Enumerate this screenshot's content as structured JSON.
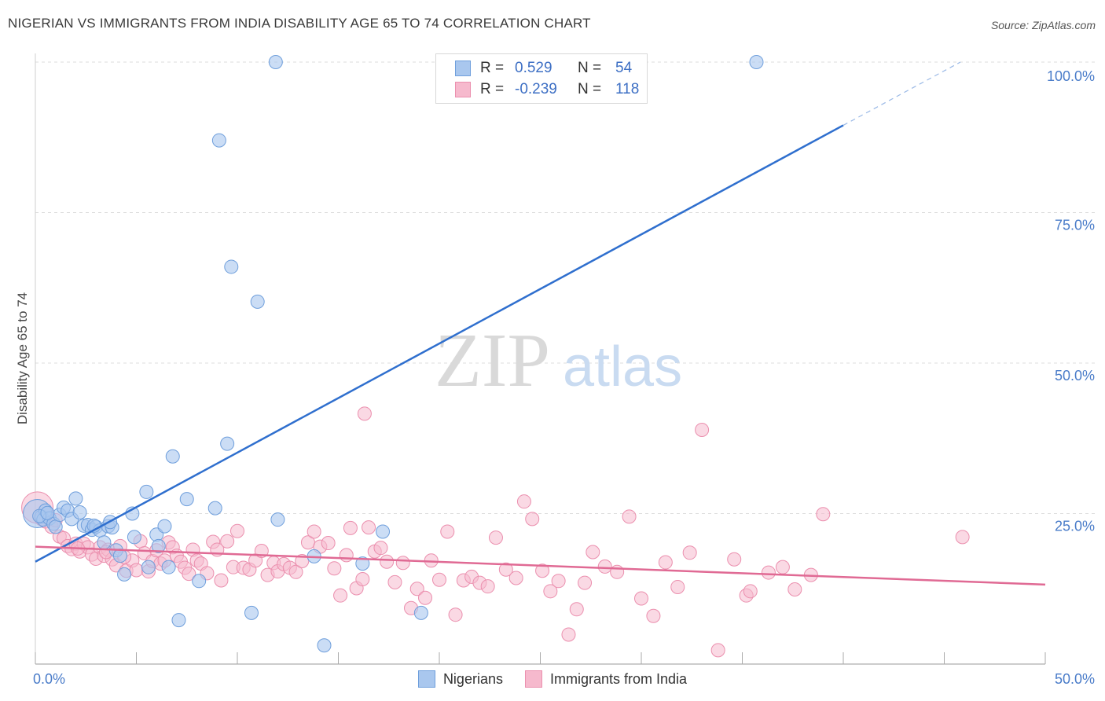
{
  "header": {
    "title": "NIGERIAN VS IMMIGRANTS FROM INDIA DISABILITY AGE 65 TO 74 CORRELATION CHART",
    "source": "Source: ZipAtlas.com"
  },
  "watermark": {
    "zip": "ZIP",
    "atlas": "atlas"
  },
  "legend": {
    "rows": [
      {
        "r_label": "R =",
        "r_value": "0.529",
        "n_label": "N =",
        "n_value": "54"
      },
      {
        "r_label": "R =",
        "r_value": "-0.239",
        "n_label": "N =",
        "n_value": "118"
      }
    ]
  },
  "bottom_legend": {
    "series1": "Nigerians",
    "series2": "Immigrants from India"
  },
  "colors": {
    "series1_fill": "#a9c7ee",
    "series1_stroke": "#6f9fdc",
    "series1_line": "#2f6fce",
    "series2_fill": "#f6b9cd",
    "series2_stroke": "#eb8fae",
    "series2_line": "#e06a94",
    "tick_text": "#4a7cc9",
    "grid": "#dddddd"
  },
  "chart_data": {
    "type": "scatter",
    "title": "NIGERIAN VS IMMIGRANTS FROM INDIA DISABILITY AGE 65 TO 74 CORRELATION CHART",
    "xlabel": "",
    "ylabel": "Disability Age 65 to 74",
    "xlim": [
      0,
      50
    ],
    "ylim": [
      0,
      100
    ],
    "x_tick_labels": [
      "0.0%",
      "50.0%"
    ],
    "y_ticks": [
      25,
      50,
      75,
      100
    ],
    "y_tick_labels": [
      "25.0%",
      "50.0%",
      "75.0%",
      "100.0%"
    ],
    "series": [
      {
        "name": "Nigerians",
        "r": 0.529,
        "n": 54,
        "trend": {
          "x0": 0,
          "y0": 17.0,
          "x1": 40,
          "y1": 89.5,
          "dashed_to_x": 45.8,
          "dashed_to_y": 100
        },
        "points": [
          [
            0.1,
            25.0
          ],
          [
            0.3,
            24.5
          ],
          [
            0.4,
            24.0
          ],
          [
            0.5,
            25.5
          ],
          [
            0.7,
            24.2
          ],
          [
            0.9,
            23.3
          ],
          [
            1.0,
            22.8
          ],
          [
            1.2,
            24.8
          ],
          [
            1.4,
            26.0
          ],
          [
            1.6,
            25.5
          ],
          [
            1.8,
            24.1
          ],
          [
            2.0,
            27.5
          ],
          [
            2.2,
            25.2
          ],
          [
            2.4,
            23.0
          ],
          [
            2.6,
            23.1
          ],
          [
            2.8,
            22.3
          ],
          [
            3.0,
            22.8
          ],
          [
            3.2,
            22.2
          ],
          [
            3.4,
            20.2
          ],
          [
            3.6,
            22.9
          ],
          [
            3.8,
            22.7
          ],
          [
            4.0,
            18.9
          ],
          [
            4.2,
            18.0
          ],
          [
            4.4,
            14.9
          ],
          [
            4.8,
            25.0
          ],
          [
            4.9,
            21.1
          ],
          [
            5.5,
            28.6
          ],
          [
            5.6,
            16.1
          ],
          [
            6.0,
            21.5
          ],
          [
            6.1,
            19.6
          ],
          [
            6.4,
            22.9
          ],
          [
            6.6,
            16.1
          ],
          [
            6.8,
            34.5
          ],
          [
            7.1,
            7.3
          ],
          [
            7.5,
            27.4
          ],
          [
            8.1,
            13.8
          ],
          [
            8.9,
            25.9
          ],
          [
            9.1,
            87.0
          ],
          [
            9.5,
            36.6
          ],
          [
            9.7,
            66.0
          ],
          [
            10.7,
            8.5
          ],
          [
            11.0,
            60.2
          ],
          [
            11.9,
            100.0
          ],
          [
            12.0,
            24.0
          ],
          [
            13.8,
            17.9
          ],
          [
            14.3,
            3.1
          ],
          [
            16.2,
            16.7
          ],
          [
            17.2,
            22.0
          ],
          [
            19.1,
            8.5
          ],
          [
            35.7,
            100.0
          ],
          [
            0.2,
            24.6
          ],
          [
            0.6,
            25.1
          ],
          [
            2.9,
            23.0
          ],
          [
            3.7,
            23.6
          ]
        ]
      },
      {
        "name": "Immigrants from India",
        "r": -0.239,
        "n": 118,
        "trend": {
          "x0": 0,
          "y0": 19.5,
          "x1": 50,
          "y1": 13.2
        },
        "points": [
          [
            0.1,
            26.0
          ],
          [
            0.3,
            24.1
          ],
          [
            0.5,
            23.7
          ],
          [
            0.8,
            22.8
          ],
          [
            1.0,
            23.9
          ],
          [
            1.2,
            21.2
          ],
          [
            1.4,
            20.9
          ],
          [
            1.6,
            19.6
          ],
          [
            1.8,
            19.1
          ],
          [
            2.0,
            20.0
          ],
          [
            2.2,
            18.7
          ],
          [
            2.4,
            20.0
          ],
          [
            2.6,
            19.4
          ],
          [
            2.8,
            18.2
          ],
          [
            3.0,
            17.5
          ],
          [
            3.2,
            19.4
          ],
          [
            3.4,
            18.0
          ],
          [
            3.6,
            19.0
          ],
          [
            3.8,
            17.4
          ],
          [
            4.0,
            16.4
          ],
          [
            4.2,
            19.6
          ],
          [
            4.5,
            15.5
          ],
          [
            4.8,
            17.2
          ],
          [
            5.0,
            15.6
          ],
          [
            5.2,
            20.4
          ],
          [
            5.4,
            18.4
          ],
          [
            5.6,
            15.4
          ],
          [
            5.8,
            17.1
          ],
          [
            6.0,
            18.9
          ],
          [
            6.2,
            16.7
          ],
          [
            6.4,
            17.2
          ],
          [
            6.6,
            20.2
          ],
          [
            6.8,
            19.4
          ],
          [
            7.0,
            18.0
          ],
          [
            7.2,
            17.0
          ],
          [
            7.4,
            16.0
          ],
          [
            7.6,
            15.0
          ],
          [
            7.8,
            19.0
          ],
          [
            8.0,
            17.2
          ],
          [
            8.2,
            16.7
          ],
          [
            8.5,
            15.1
          ],
          [
            8.8,
            20.3
          ],
          [
            9.0,
            19.0
          ],
          [
            9.2,
            13.9
          ],
          [
            9.5,
            20.4
          ],
          [
            9.8,
            16.1
          ],
          [
            10.0,
            22.1
          ],
          [
            10.3,
            16.0
          ],
          [
            10.6,
            15.7
          ],
          [
            10.9,
            17.2
          ],
          [
            11.2,
            18.8
          ],
          [
            11.5,
            14.8
          ],
          [
            11.8,
            16.8
          ],
          [
            12.0,
            15.4
          ],
          [
            12.3,
            16.6
          ],
          [
            12.6,
            16.0
          ],
          [
            12.9,
            15.3
          ],
          [
            13.2,
            17.1
          ],
          [
            13.5,
            20.2
          ],
          [
            13.8,
            22.0
          ],
          [
            14.1,
            19.5
          ],
          [
            14.5,
            20.1
          ],
          [
            14.8,
            15.9
          ],
          [
            15.1,
            11.4
          ],
          [
            15.4,
            18.1
          ],
          [
            15.6,
            22.6
          ],
          [
            15.9,
            12.6
          ],
          [
            16.2,
            14.1
          ],
          [
            16.5,
            22.7
          ],
          [
            16.8,
            18.7
          ],
          [
            17.1,
            19.3
          ],
          [
            17.4,
            17.0
          ],
          [
            17.8,
            13.6
          ],
          [
            18.2,
            16.8
          ],
          [
            18.6,
            9.3
          ],
          [
            18.9,
            12.5
          ],
          [
            19.3,
            11.0
          ],
          [
            19.6,
            17.2
          ],
          [
            20.0,
            14.0
          ],
          [
            20.4,
            22.0
          ],
          [
            20.8,
            8.2
          ],
          [
            21.2,
            13.9
          ],
          [
            21.6,
            14.5
          ],
          [
            22.0,
            13.5
          ],
          [
            22.4,
            12.9
          ],
          [
            22.8,
            21.0
          ],
          [
            23.3,
            15.7
          ],
          [
            23.8,
            14.3
          ],
          [
            24.2,
            27.0
          ],
          [
            24.6,
            24.1
          ],
          [
            25.1,
            15.5
          ],
          [
            25.5,
            12.1
          ],
          [
            25.9,
            13.8
          ],
          [
            26.4,
            4.9
          ],
          [
            26.8,
            9.1
          ],
          [
            27.2,
            13.5
          ],
          [
            27.6,
            18.6
          ],
          [
            28.2,
            16.2
          ],
          [
            28.8,
            15.3
          ],
          [
            29.4,
            24.5
          ],
          [
            30.0,
            10.9
          ],
          [
            30.6,
            8.0
          ],
          [
            31.2,
            16.9
          ],
          [
            31.8,
            12.8
          ],
          [
            32.4,
            18.5
          ],
          [
            33.0,
            38.9
          ],
          [
            33.8,
            2.3
          ],
          [
            34.6,
            17.4
          ],
          [
            35.2,
            11.4
          ],
          [
            35.4,
            12.1
          ],
          [
            37.0,
            16.1
          ],
          [
            37.6,
            12.4
          ],
          [
            38.4,
            14.8
          ],
          [
            39.0,
            24.9
          ],
          [
            45.9,
            21.1
          ],
          [
            4.4,
            17.8
          ],
          [
            3.5,
            18.6
          ],
          [
            2.1,
            19.2
          ],
          [
            16.3,
            41.6
          ],
          [
            36.3,
            15.2
          ]
        ]
      }
    ]
  }
}
